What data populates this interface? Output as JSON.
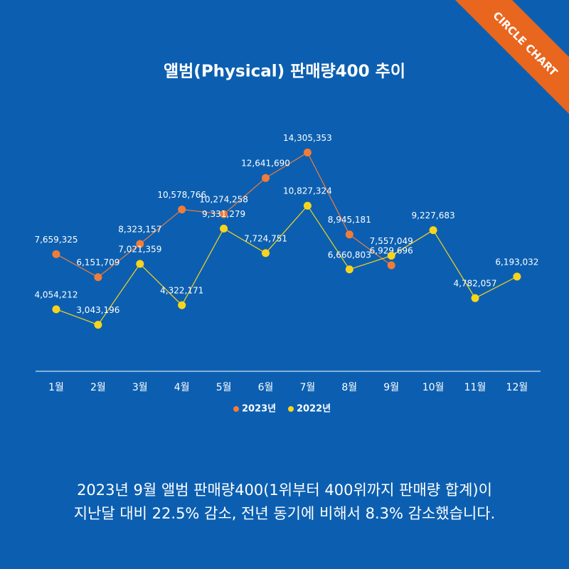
{
  "brand": "CIRCLE CHART",
  "chart_data": {
    "type": "line",
    "title": "앨범(Physical) 판매량400 추이",
    "categories": [
      "1월",
      "2월",
      "3월",
      "4월",
      "5월",
      "6월",
      "7월",
      "8월",
      "9월",
      "10월",
      "11월",
      "12월"
    ],
    "series": [
      {
        "name": "2023년",
        "color": "#f07c3a",
        "values": [
          7659325,
          6151709,
          8323157,
          10578766,
          10274258,
          12641690,
          14305353,
          8945181,
          6929696,
          null,
          null,
          null
        ],
        "value_labels": [
          "7,659,325",
          "6,151,709",
          "8,323,157",
          "10,578,766",
          "10,274,258",
          "12,641,690",
          "14,305,353",
          "8,945,181",
          "6,929,696",
          null,
          null,
          null
        ]
      },
      {
        "name": "2022년",
        "color": "#f8d51c",
        "values": [
          4054212,
          3043196,
          7021359,
          4322171,
          9331279,
          7724751,
          10827324,
          6660803,
          7557049,
          9227683,
          4782057,
          6193032
        ],
        "value_labels": [
          "4,054,212",
          "3,043,196",
          "7,021,359",
          "4,322,171",
          "9,331,279",
          "7,724,751",
          "10,827,324",
          "6,660,803",
          "7,557,049",
          "9,227,683",
          "4,782,057",
          "6,193,032"
        ]
      }
    ],
    "ylim": [
      0,
      16000000
    ]
  },
  "caption": [
    "2023년 9월 앨범 판매량400(1위부터 400위까지 판매량 합계)이",
    "지난달 대비 22.5% 감소, 전년 동기에 비해서 8.3% 감소했습니다."
  ]
}
